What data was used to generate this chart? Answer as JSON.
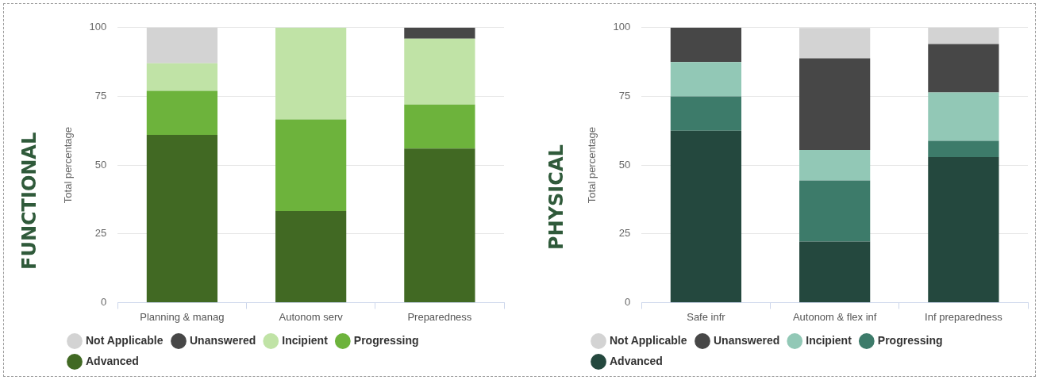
{
  "chart_data": [
    {
      "type": "bar",
      "title": "FUNCTIONAL",
      "ylabel": "Total percentage",
      "stacked": true,
      "categories": [
        "Planning & manag",
        "Autonom serv",
        "Preparedness"
      ],
      "ylim": [
        0,
        100
      ],
      "yticks": [
        0,
        25,
        50,
        75,
        100
      ],
      "grid": "y",
      "legend": "bottom",
      "series": [
        {
          "name": "Advanced",
          "color": "#416923",
          "values": [
            61,
            33.3,
            56
          ]
        },
        {
          "name": "Progressing",
          "color": "#6db33c",
          "values": [
            16,
            33.3,
            16
          ]
        },
        {
          "name": "Incipient",
          "color": "#c0e3a6",
          "values": [
            10,
            33.4,
            24
          ]
        },
        {
          "name": "Unanswered",
          "color": "#474747",
          "values": [
            0,
            0,
            4
          ]
        },
        {
          "name": "Not Applicable",
          "color": "#d3d3d3",
          "values": [
            13,
            0,
            0
          ]
        }
      ]
    },
    {
      "type": "bar",
      "title": "PHYSICAL",
      "ylabel": "Total percentage",
      "stacked": true,
      "categories": [
        "Safe infr",
        "Autonom & flex inf",
        "Inf preparedness"
      ],
      "ylim": [
        0,
        100
      ],
      "yticks": [
        0,
        25,
        50,
        75,
        100
      ],
      "grid": "y",
      "legend": "bottom",
      "series": [
        {
          "name": "Advanced",
          "color": "#24483e",
          "values": [
            62.5,
            22.2,
            52.9
          ]
        },
        {
          "name": "Progressing",
          "color": "#3d7b6a",
          "values": [
            12.5,
            22.2,
            5.9
          ]
        },
        {
          "name": "Incipient",
          "color": "#92c8b6",
          "values": [
            12.5,
            11.1,
            17.6
          ]
        },
        {
          "name": "Unanswered",
          "color": "#474747",
          "values": [
            12.5,
            33.3,
            17.6
          ]
        },
        {
          "name": "Not Applicable",
          "color": "#d3d3d3",
          "values": [
            0,
            11.1,
            6.0
          ]
        }
      ]
    }
  ]
}
